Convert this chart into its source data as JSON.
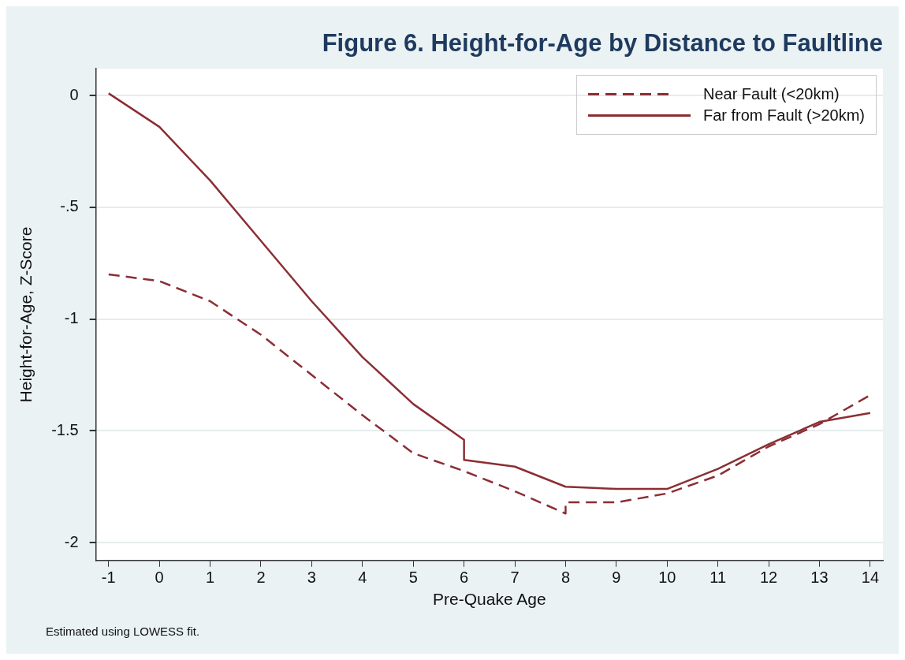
{
  "chart_data": {
    "type": "line",
    "title": "Figure 6. Height-for-Age by Distance to Faultline",
    "xlabel": "Pre-Quake Age",
    "ylabel": "Height-for-Age, Z-Score",
    "annotations": [
      "Estimated using LOWESS fit."
    ],
    "xlim": [
      -1.25,
      14.25
    ],
    "xticks": [
      -1,
      0,
      1,
      2,
      3,
      4,
      5,
      6,
      7,
      8,
      9,
      10,
      11,
      12,
      13,
      14
    ],
    "ylim": [
      -2.08,
      0.12
    ],
    "yticks": [
      0,
      {
        "value": -0.5,
        "label": "-.5"
      },
      -1,
      -1.5,
      -2
    ],
    "grid": "y",
    "legend": "top right",
    "marker": "none",
    "series": [
      {
        "name": "Near Fault (<20km)",
        "color": "#8b2e34",
        "line_style": "dashed",
        "x": [
          -1,
          0,
          1,
          2,
          3,
          4,
          5,
          6,
          7,
          8,
          8,
          9,
          10,
          11,
          12,
          13,
          14
        ],
        "values": [
          -0.8,
          -0.83,
          -0.92,
          -1.07,
          -1.25,
          -1.43,
          -1.6,
          -1.68,
          -1.77,
          -1.87,
          -1.82,
          -1.82,
          -1.78,
          -1.7,
          -1.57,
          -1.47,
          -1.34
        ]
      },
      {
        "name": "Far from Fault (>20km)",
        "color": "#8b2e34",
        "line_style": "solid",
        "x": [
          -1,
          0,
          1,
          2,
          3,
          4,
          5,
          6,
          6,
          7,
          8,
          9,
          10,
          11,
          12,
          13,
          14
        ],
        "values": [
          0.01,
          -0.14,
          -0.38,
          -0.65,
          -0.92,
          -1.17,
          -1.38,
          -1.54,
          -1.63,
          -1.66,
          -1.75,
          -1.76,
          -1.76,
          -1.67,
          -1.56,
          -1.46,
          -1.42
        ]
      }
    ]
  }
}
